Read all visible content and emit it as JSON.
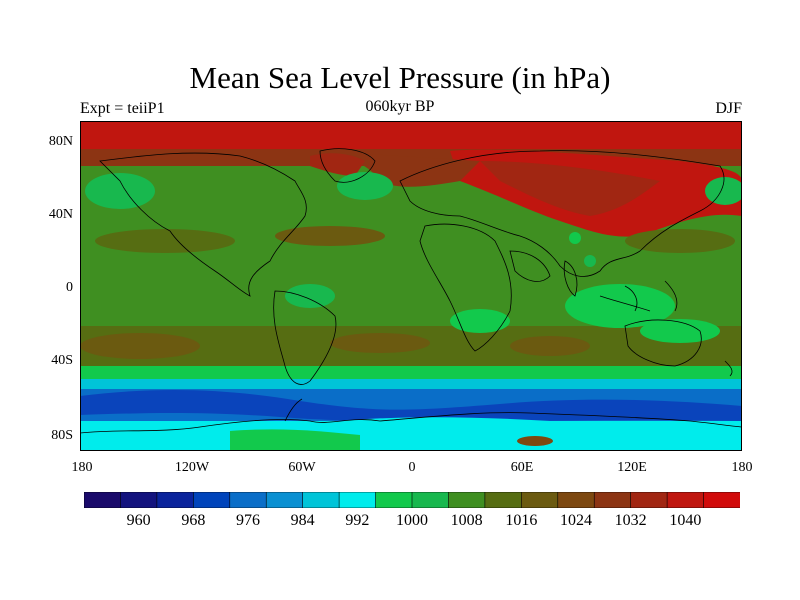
{
  "title": "Mean Sea Level Pressure (in hPa)",
  "subtitle_left": "Expt = teiiP1",
  "subtitle_center": "060kyr BP",
  "subtitle_right": "DJF",
  "y_ticks": [
    "80N",
    "40N",
    "0",
    "40S",
    "80S"
  ],
  "x_ticks": [
    "180",
    "120W",
    "60W",
    "0",
    "60E",
    "120E",
    "180"
  ],
  "colorbar": {
    "colors": [
      "#1a0a6b",
      "#13137e",
      "#0a239c",
      "#0044bb",
      "#0a6ec8",
      "#0a90d2",
      "#00c4d8",
      "#00ecec",
      "#12c94c",
      "#18b84e",
      "#3f8f21",
      "#566d12",
      "#6b5a10",
      "#7d4810",
      "#8c3413",
      "#a12612",
      "#c0160f",
      "#d10a0a"
    ],
    "labels": [
      "960",
      "968",
      "976",
      "984",
      "992",
      "1000",
      "1008",
      "1016",
      "1024",
      "1032",
      "1040"
    ]
  }
}
